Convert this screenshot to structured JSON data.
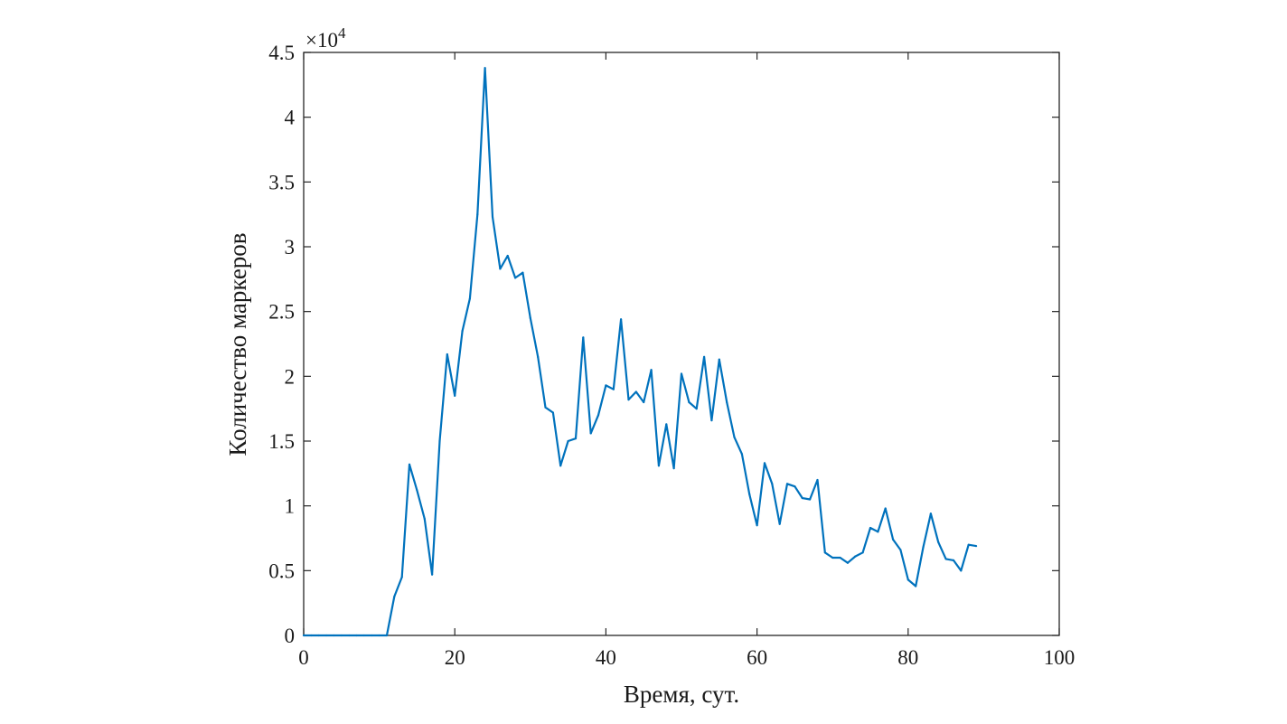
{
  "chart_data": {
    "type": "line",
    "xlabel": "Время, сут.",
    "ylabel": "Количество маркеров",
    "y_multiplier_label": "×10",
    "y_multiplier_exponent": "4",
    "xlim": [
      0,
      100
    ],
    "ylim": [
      0,
      45000
    ],
    "x_ticks": [
      0,
      20,
      40,
      60,
      80,
      100
    ],
    "x_tick_labels": [
      "0",
      "20",
      "40",
      "60",
      "80",
      "100"
    ],
    "y_ticks": [
      0,
      5000,
      10000,
      15000,
      20000,
      25000,
      30000,
      35000,
      40000,
      45000
    ],
    "y_tick_labels": [
      "0",
      "0.5",
      "1",
      "1.5",
      "2",
      "2.5",
      "3",
      "3.5",
      "4",
      "4.5"
    ],
    "grid": false,
    "color": "#0072bd",
    "series": [
      {
        "x": [
          0,
          1,
          2,
          3,
          4,
          5,
          6,
          7,
          8,
          9,
          10,
          11,
          12,
          13,
          14,
          15,
          16,
          17,
          18,
          19,
          20,
          21,
          22,
          23,
          24,
          25,
          26,
          27,
          28,
          29,
          30,
          31,
          32,
          33,
          34,
          35,
          36,
          37,
          38,
          39,
          40,
          41,
          42,
          43,
          44,
          45,
          46,
          47,
          48,
          49,
          50,
          51,
          52,
          53,
          54,
          55,
          56,
          57,
          58,
          59,
          60,
          61,
          62,
          63,
          64,
          65,
          66,
          67,
          68,
          69,
          70,
          71,
          72,
          73,
          74,
          75,
          76,
          77,
          78,
          79,
          80,
          81,
          82,
          83,
          84,
          85,
          86,
          87,
          88,
          89
        ],
        "y": [
          0,
          0,
          0,
          0,
          0,
          0,
          0,
          0,
          0,
          0,
          0,
          0,
          3000,
          4500,
          13200,
          11200,
          9000,
          4700,
          15000,
          21700,
          18500,
          23500,
          26000,
          32500,
          43800,
          32300,
          28300,
          29300,
          27600,
          28000,
          24500,
          21500,
          17600,
          17200,
          13100,
          15000,
          15200,
          23000,
          15600,
          17000,
          19300,
          19000,
          24400,
          18200,
          18800,
          18000,
          20500,
          13100,
          16300,
          12900,
          20200,
          18000,
          17500,
          21500,
          16600,
          21300,
          18000,
          15300,
          14000,
          10900,
          8500,
          13300,
          11700,
          8600,
          11700,
          11500,
          10600,
          10500,
          12000,
          6400,
          6000,
          6000,
          5600,
          6100,
          6400,
          8300,
          8000,
          9800,
          7400,
          6600,
          4300,
          3800,
          6800,
          9400,
          7200,
          5900,
          5800,
          5000,
          7000,
          6900
        ]
      }
    ]
  }
}
